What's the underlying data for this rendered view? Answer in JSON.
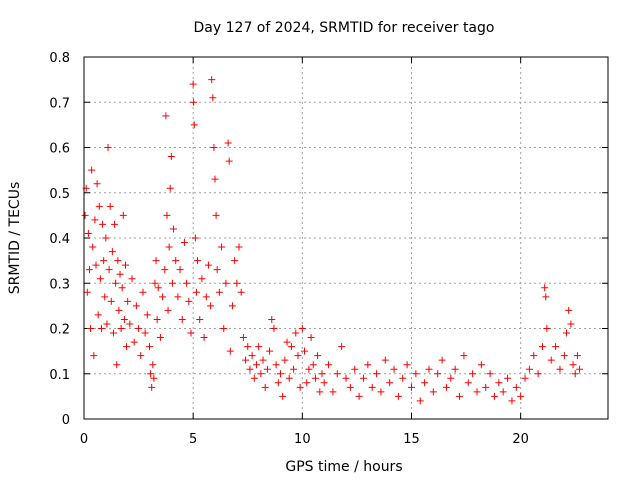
{
  "chart_data": {
    "type": "scatter",
    "title": "Day 127 of 2024, SRMTID for receiver tago",
    "xlabel": "GPS time / hours",
    "ylabel": "SRMTID / TECUs",
    "xlim": [
      0,
      24
    ],
    "ylim": [
      0,
      0.8
    ],
    "xticks": [
      0,
      5,
      10,
      15,
      20
    ],
    "yticks": [
      0,
      0.1,
      0.2,
      0.3,
      0.4,
      0.5,
      0.6,
      0.7,
      0.8
    ],
    "xtick_labels": [
      "0",
      "5",
      "10",
      "15",
      "20"
    ],
    "ytick_labels": [
      "0",
      "0.1",
      "0.2",
      "0.3",
      "0.4",
      "0.5",
      "0.6",
      "0.7",
      "0.8"
    ],
    "grid": true,
    "marker": "+",
    "series": [
      {
        "name": "tago",
        "color": "#ff0000",
        "points": [
          [
            0.05,
            0.45
          ],
          [
            0.1,
            0.51
          ],
          [
            0.15,
            0.28
          ],
          [
            0.2,
            0.41
          ],
          [
            0.25,
            0.33
          ],
          [
            0.3,
            0.2
          ],
          [
            0.35,
            0.55
          ],
          [
            0.4,
            0.38
          ],
          [
            0.45,
            0.14
          ],
          [
            0.5,
            0.44
          ],
          [
            0.55,
            0.34
          ],
          [
            0.6,
            0.52
          ],
          [
            0.65,
            0.23
          ],
          [
            0.7,
            0.47
          ],
          [
            0.75,
            0.31
          ],
          [
            0.8,
            0.2
          ],
          [
            0.85,
            0.43
          ],
          [
            0.9,
            0.35
          ],
          [
            0.95,
            0.27
          ],
          [
            1.0,
            0.4
          ],
          [
            1.05,
            0.21
          ],
          [
            1.1,
            0.6
          ],
          [
            1.15,
            0.33
          ],
          [
            1.2,
            0.47
          ],
          [
            1.25,
            0.26
          ],
          [
            1.3,
            0.37
          ],
          [
            1.35,
            0.19
          ],
          [
            1.4,
            0.43
          ],
          [
            1.45,
            0.3
          ],
          [
            1.5,
            0.12
          ],
          [
            1.55,
            0.35
          ],
          [
            1.6,
            0.24
          ],
          [
            1.65,
            0.32
          ],
          [
            1.7,
            0.2
          ],
          [
            1.75,
            0.29
          ],
          [
            1.8,
            0.45
          ],
          [
            1.85,
            0.22
          ],
          [
            1.9,
            0.34
          ],
          [
            1.95,
            0.16
          ],
          [
            2.0,
            0.26
          ],
          [
            2.1,
            0.21
          ],
          [
            2.2,
            0.31
          ],
          [
            2.3,
            0.17
          ],
          [
            2.4,
            0.25
          ],
          [
            2.5,
            0.2
          ],
          [
            2.6,
            0.14
          ],
          [
            2.7,
            0.28
          ],
          [
            2.8,
            0.19
          ],
          [
            2.9,
            0.23
          ],
          [
            3.0,
            0.16
          ],
          [
            3.05,
            0.1
          ],
          [
            3.1,
            0.07
          ],
          [
            3.15,
            0.12
          ],
          [
            3.2,
            0.09
          ],
          [
            3.25,
            0.3
          ],
          [
            3.3,
            0.35
          ],
          [
            3.35,
            0.22
          ],
          [
            3.4,
            0.29
          ],
          [
            3.5,
            0.18
          ],
          [
            3.6,
            0.27
          ],
          [
            3.7,
            0.33
          ],
          [
            3.75,
            0.67
          ],
          [
            3.8,
            0.45
          ],
          [
            3.85,
            0.24
          ],
          [
            3.9,
            0.38
          ],
          [
            3.95,
            0.51
          ],
          [
            4.0,
            0.58
          ],
          [
            4.05,
            0.3
          ],
          [
            4.1,
            0.42
          ],
          [
            4.2,
            0.35
          ],
          [
            4.3,
            0.27
          ],
          [
            4.4,
            0.33
          ],
          [
            4.5,
            0.22
          ],
          [
            4.6,
            0.39
          ],
          [
            4.7,
            0.3
          ],
          [
            4.8,
            0.26
          ],
          [
            4.9,
            0.19
          ],
          [
            5.0,
            0.74
          ],
          [
            5.02,
            0.7
          ],
          [
            5.05,
            0.65
          ],
          [
            5.1,
            0.4
          ],
          [
            5.15,
            0.28
          ],
          [
            5.2,
            0.35
          ],
          [
            5.3,
            0.22
          ],
          [
            5.4,
            0.31
          ],
          [
            5.5,
            0.18
          ],
          [
            5.6,
            0.27
          ],
          [
            5.7,
            0.34
          ],
          [
            5.8,
            0.25
          ],
          [
            5.85,
            0.75
          ],
          [
            5.9,
            0.71
          ],
          [
            5.95,
            0.6
          ],
          [
            6.0,
            0.53
          ],
          [
            6.05,
            0.45
          ],
          [
            6.1,
            0.33
          ],
          [
            6.2,
            0.28
          ],
          [
            6.3,
            0.38
          ],
          [
            6.4,
            0.2
          ],
          [
            6.5,
            0.3
          ],
          [
            6.6,
            0.61
          ],
          [
            6.65,
            0.57
          ],
          [
            6.7,
            0.15
          ],
          [
            6.8,
            0.25
          ],
          [
            6.9,
            0.35
          ],
          [
            7.0,
            0.3
          ],
          [
            7.1,
            0.38
          ],
          [
            7.2,
            0.28
          ],
          [
            7.3,
            0.18
          ],
          [
            7.4,
            0.13
          ],
          [
            7.5,
            0.16
          ],
          [
            7.6,
            0.11
          ],
          [
            7.7,
            0.14
          ],
          [
            7.8,
            0.09
          ],
          [
            7.9,
            0.12
          ],
          [
            8.0,
            0.16
          ],
          [
            8.1,
            0.1
          ],
          [
            8.2,
            0.13
          ],
          [
            8.3,
            0.07
          ],
          [
            8.4,
            0.11
          ],
          [
            8.5,
            0.15
          ],
          [
            8.6,
            0.22
          ],
          [
            8.7,
            0.2
          ],
          [
            8.8,
            0.12
          ],
          [
            8.9,
            0.08
          ],
          [
            9.0,
            0.1
          ],
          [
            9.1,
            0.05
          ],
          [
            9.2,
            0.13
          ],
          [
            9.3,
            0.17
          ],
          [
            9.4,
            0.09
          ],
          [
            9.5,
            0.16
          ],
          [
            9.6,
            0.11
          ],
          [
            9.7,
            0.19
          ],
          [
            9.8,
            0.14
          ],
          [
            9.9,
            0.07
          ],
          [
            10.0,
            0.2
          ],
          [
            10.1,
            0.15
          ],
          [
            10.2,
            0.08
          ],
          [
            10.3,
            0.11
          ],
          [
            10.4,
            0.18
          ],
          [
            10.5,
            0.12
          ],
          [
            10.6,
            0.09
          ],
          [
            10.7,
            0.14
          ],
          [
            10.8,
            0.06
          ],
          [
            10.9,
            0.1
          ],
          [
            11.0,
            0.08
          ],
          [
            11.2,
            0.12
          ],
          [
            11.4,
            0.06
          ],
          [
            11.6,
            0.1
          ],
          [
            11.8,
            0.16
          ],
          [
            12.0,
            0.09
          ],
          [
            12.2,
            0.07
          ],
          [
            12.4,
            0.11
          ],
          [
            12.6,
            0.05
          ],
          [
            12.8,
            0.09
          ],
          [
            13.0,
            0.12
          ],
          [
            13.2,
            0.07
          ],
          [
            13.4,
            0.1
          ],
          [
            13.6,
            0.06
          ],
          [
            13.8,
            0.13
          ],
          [
            14.0,
            0.08
          ],
          [
            14.2,
            0.11
          ],
          [
            14.4,
            0.05
          ],
          [
            14.6,
            0.09
          ],
          [
            14.8,
            0.12
          ],
          [
            15.0,
            0.07
          ],
          [
            15.2,
            0.1
          ],
          [
            15.4,
            0.04
          ],
          [
            15.6,
            0.08
          ],
          [
            15.8,
            0.11
          ],
          [
            16.0,
            0.06
          ],
          [
            16.2,
            0.1
          ],
          [
            16.4,
            0.13
          ],
          [
            16.6,
            0.07
          ],
          [
            16.8,
            0.09
          ],
          [
            17.0,
            0.11
          ],
          [
            17.2,
            0.05
          ],
          [
            17.4,
            0.14
          ],
          [
            17.6,
            0.08
          ],
          [
            17.8,
            0.1
          ],
          [
            18.0,
            0.06
          ],
          [
            18.2,
            0.12
          ],
          [
            18.4,
            0.07
          ],
          [
            18.6,
            0.1
          ],
          [
            18.8,
            0.05
          ],
          [
            19.0,
            0.08
          ],
          [
            19.2,
            0.06
          ],
          [
            19.4,
            0.09
          ],
          [
            19.6,
            0.04
          ],
          [
            19.8,
            0.07
          ],
          [
            20.0,
            0.05
          ],
          [
            20.2,
            0.09
          ],
          [
            20.4,
            0.11
          ],
          [
            20.6,
            0.14
          ],
          [
            20.8,
            0.1
          ],
          [
            21.0,
            0.16
          ],
          [
            21.1,
            0.29
          ],
          [
            21.15,
            0.27
          ],
          [
            21.2,
            0.2
          ],
          [
            21.4,
            0.13
          ],
          [
            21.6,
            0.16
          ],
          [
            21.8,
            0.11
          ],
          [
            22.0,
            0.14
          ],
          [
            22.1,
            0.19
          ],
          [
            22.2,
            0.24
          ],
          [
            22.3,
            0.21
          ],
          [
            22.4,
            0.12
          ],
          [
            22.5,
            0.1
          ],
          [
            22.6,
            0.14
          ],
          [
            22.7,
            0.11
          ]
        ]
      }
    ]
  }
}
